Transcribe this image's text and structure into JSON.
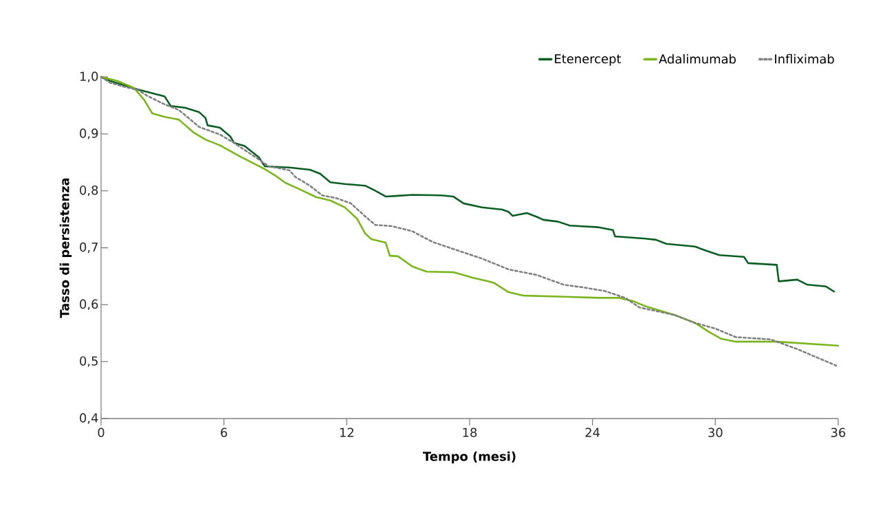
{
  "chart_data": {
    "type": "line",
    "xlabel": "Tempo (mesi)",
    "ylabel": "Tasso di persistenza",
    "xlim": [
      0,
      36
    ],
    "xticks": [
      0,
      6,
      12,
      18,
      24,
      30,
      36
    ],
    "ylim": [
      0.4,
      1.0
    ],
    "yticks": [
      {
        "value": 0.4,
        "label": "0,4"
      },
      {
        "value": 0.5,
        "label": "0,5"
      },
      {
        "value": 0.6,
        "label": "0,6"
      },
      {
        "value": 0.7,
        "label": "0,7"
      },
      {
        "value": 0.8,
        "label": "0,8"
      },
      {
        "value": 0.9,
        "label": "0,9"
      },
      {
        "value": 1.0,
        "label": "1,0"
      }
    ],
    "grid": false,
    "legend": "top right",
    "marker": "none",
    "series": [
      {
        "name": "Etenercept",
        "color": "#0b5e23",
        "line_style": "solid",
        "x": [
          0,
          0.44,
          1.8,
          3.1,
          3.4,
          4.1,
          4.8,
          5.1,
          5.2,
          5.8,
          6.3,
          6.5,
          7.0,
          7.7,
          8.0,
          9.2,
          10.2,
          10.7,
          11.2,
          11.9,
          12.9,
          13.4,
          13.9,
          14.4,
          15.2,
          16.6,
          17.2,
          17.7,
          18.6,
          19.6,
          19.9,
          20.1,
          20.8,
          21.3,
          21.6,
          22.3,
          22.9,
          24.3,
          25.0,
          25.1,
          26.6,
          27.1,
          27.6,
          29.0,
          29.7,
          30.2,
          31.4,
          31.6,
          33.0,
          33.1,
          34.0,
          34.5,
          35.4,
          35.8
        ],
        "values": [
          1.0,
          0.993,
          0.978,
          0.966,
          0.949,
          0.946,
          0.938,
          0.928,
          0.915,
          0.911,
          0.896,
          0.884,
          0.879,
          0.859,
          0.843,
          0.841,
          0.837,
          0.83,
          0.815,
          0.812,
          0.809,
          0.8,
          0.79,
          0.791,
          0.793,
          0.792,
          0.79,
          0.778,
          0.771,
          0.767,
          0.763,
          0.756,
          0.761,
          0.754,
          0.749,
          0.746,
          0.739,
          0.736,
          0.731,
          0.72,
          0.716,
          0.714,
          0.707,
          0.702,
          0.693,
          0.687,
          0.684,
          0.673,
          0.67,
          0.641,
          0.644,
          0.635,
          0.632,
          0.623
        ]
      },
      {
        "name": "Adalimumab",
        "color": "#7ab51d",
        "line_style": "solid",
        "x": [
          0,
          0.8,
          1.6,
          2.1,
          2.5,
          3.1,
          3.8,
          4.5,
          5.1,
          5.8,
          6.8,
          8.0,
          8.5,
          9.0,
          9.5,
          10.5,
          11.2,
          11.9,
          12.5,
          12.9,
          13.2,
          13.9,
          14.1,
          14.5,
          15.2,
          15.9,
          17.2,
          18.2,
          18.9,
          19.2,
          19.9,
          20.6,
          22.6,
          24.3,
          25.3,
          26.0,
          26.6,
          28.0,
          29.0,
          29.7,
          30.3,
          31.0,
          33.0,
          36.0
        ],
        "values": [
          1.0,
          0.993,
          0.981,
          0.96,
          0.936,
          0.93,
          0.925,
          0.903,
          0.89,
          0.88,
          0.86,
          0.838,
          0.827,
          0.814,
          0.806,
          0.789,
          0.783,
          0.771,
          0.751,
          0.725,
          0.715,
          0.709,
          0.686,
          0.685,
          0.667,
          0.658,
          0.657,
          0.647,
          0.641,
          0.638,
          0.622,
          0.616,
          0.614,
          0.612,
          0.612,
          0.606,
          0.597,
          0.582,
          0.568,
          0.552,
          0.54,
          0.535,
          0.535,
          0.528
        ]
      },
      {
        "name": "Infliximab",
        "color": "#808080",
        "line_style": "dotted",
        "x": [
          0,
          0.44,
          1.1,
          1.8,
          2.3,
          3.1,
          3.8,
          4.8,
          5.8,
          6.5,
          7.5,
          8.2,
          9.2,
          9.5,
          10.2,
          10.8,
          11.5,
          12.2,
          12.9,
          13.4,
          14.2,
          15.2,
          16.2,
          18.6,
          19.9,
          21.3,
          21.9,
          22.6,
          23.6,
          24.6,
          25.6,
          26.3,
          28.0,
          29.0,
          30.0,
          31.0,
          32.7,
          34.0,
          35.9
        ],
        "values": [
          1.0,
          0.99,
          0.983,
          0.977,
          0.966,
          0.952,
          0.942,
          0.912,
          0.899,
          0.884,
          0.86,
          0.843,
          0.836,
          0.824,
          0.809,
          0.792,
          0.787,
          0.778,
          0.755,
          0.74,
          0.738,
          0.729,
          0.71,
          0.681,
          0.662,
          0.652,
          0.644,
          0.635,
          0.63,
          0.624,
          0.612,
          0.595,
          0.582,
          0.568,
          0.558,
          0.543,
          0.539,
          0.522,
          0.493
        ]
      }
    ]
  }
}
